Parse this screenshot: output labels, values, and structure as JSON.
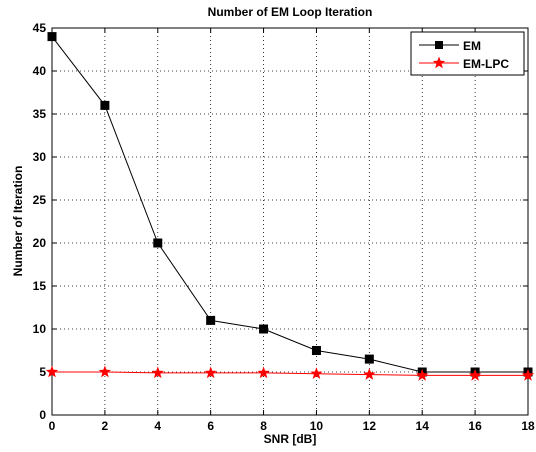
{
  "chart_data": {
    "type": "line",
    "title": "Number of EM Loop Iteration",
    "xlabel": "SNR [dB]",
    "ylabel": "Number of Iteration",
    "x": [
      0,
      2,
      4,
      6,
      8,
      10,
      12,
      14,
      16,
      18
    ],
    "xlim": [
      0,
      18
    ],
    "ylim": [
      0,
      45
    ],
    "xticks": [
      "0",
      "2",
      "4",
      "6",
      "8",
      "10",
      "12",
      "14",
      "16",
      "18"
    ],
    "yticks": [
      "0",
      "5",
      "10",
      "15",
      "20",
      "25",
      "30",
      "35",
      "40",
      "45"
    ],
    "grid": true,
    "legend_position": "top-right",
    "series": [
      {
        "name": "EM",
        "values": [
          44,
          36,
          20,
          11,
          10,
          7.5,
          6.5,
          5,
          5,
          5
        ],
        "color": "#000000",
        "marker": "square"
      },
      {
        "name": "EM-LPC",
        "values": [
          5,
          5,
          4.9,
          4.9,
          4.9,
          4.8,
          4.7,
          4.6,
          4.6,
          4.6
        ],
        "color": "#ff0000",
        "marker": "star"
      }
    ]
  }
}
